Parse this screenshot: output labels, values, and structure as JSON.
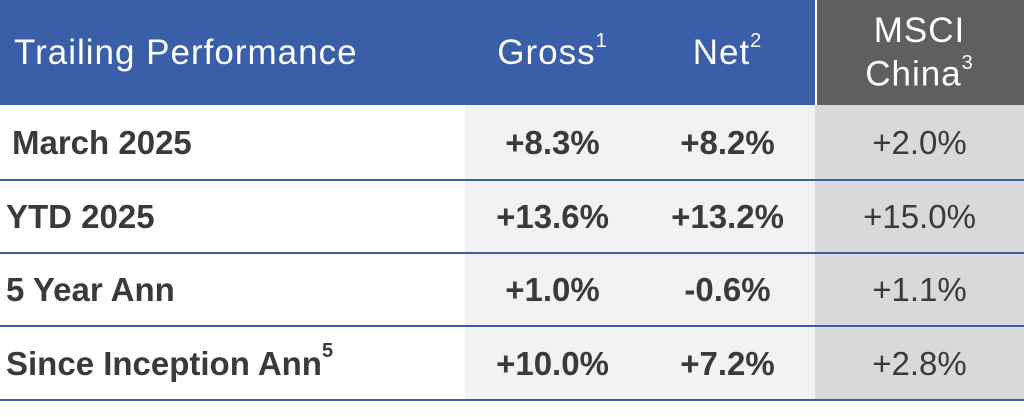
{
  "header": {
    "label": "Trailing Performance",
    "gross": "Gross",
    "gross_note": "1",
    "net": "Net",
    "net_note": "2",
    "msci_line1": "MSCI",
    "msci_line2": "China",
    "msci_note": "3"
  },
  "rows": [
    {
      "label": "March 2025",
      "note": "",
      "gross": "+8.3%",
      "net": "+8.2%",
      "msci": "+2.0%"
    },
    {
      "label": "YTD 2025",
      "note": "",
      "gross": "+13.6%",
      "net": "+13.2%",
      "msci": "+15.0%"
    },
    {
      "label": "5 Year Ann",
      "note": "",
      "gross": "+1.0%",
      "net": "-0.6%",
      "msci": "+1.1%"
    },
    {
      "label": "Since Inception Ann",
      "note": "5",
      "gross": "+10.0%",
      "net": "+7.2%",
      "msci": "+2.8%"
    }
  ],
  "colors": {
    "header_blue": "#3a5ea8",
    "header_grey": "#5f5f5f",
    "light_shade": "#f2f2f2",
    "grey_shade": "#d9d9d9",
    "divider": "#3a5ea8"
  }
}
